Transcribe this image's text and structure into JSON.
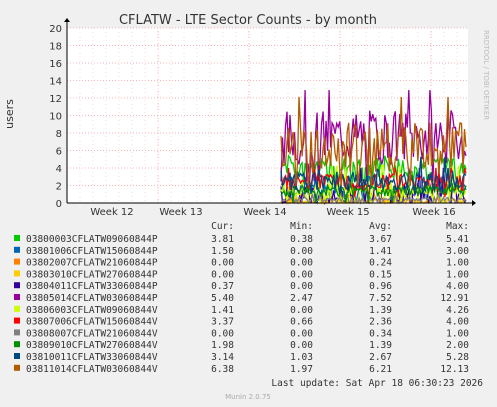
{
  "chart_data": {
    "type": "line",
    "title": "CFLATW - LTE Sector Counts - by month",
    "ylabel": "users",
    "ylim": [
      0,
      20
    ],
    "yticks": [
      0,
      2,
      4,
      6,
      8,
      10,
      12,
      14,
      16,
      18,
      20
    ],
    "xticks": [
      "Week 12",
      "Week 13",
      "Week 14",
      "Week 15",
      "Week 16"
    ],
    "grid": true,
    "side_text": "RRDTOOL / TOBI OETIKER",
    "legend_headers": [
      "Cur:",
      "Min:",
      "Avg:",
      "Max:"
    ],
    "series": [
      {
        "name": "03800003CFLATW09060844P",
        "color": "#00cc00",
        "cur": "3.81",
        "min": "0.38",
        "avg": "3.67",
        "max": "5.41"
      },
      {
        "name": "03801006CFLATW15060844P",
        "color": "#0066b3",
        "cur": "1.50",
        "min": "0.00",
        "avg": "1.41",
        "max": "3.00"
      },
      {
        "name": "03802007CFLATW21060844P",
        "color": "#ff8000",
        "cur": "0.00",
        "min": "0.00",
        "avg": "0.24",
        "max": "1.00"
      },
      {
        "name": "03803010CFLATW27060844P",
        "color": "#ffcc00",
        "cur": "0.00",
        "min": "0.00",
        "avg": "0.15",
        "max": "1.00"
      },
      {
        "name": "03804011CFLATW33060844P",
        "color": "#330099",
        "cur": "0.37",
        "min": "0.00",
        "avg": "0.96",
        "max": "4.00"
      },
      {
        "name": "03805014CFLATW03060844P",
        "color": "#990099",
        "cur": "5.40",
        "min": "2.47",
        "avg": "7.52",
        "max": "12.91"
      },
      {
        "name": "03806003CFLATW09060844V",
        "color": "#ccff00",
        "cur": "1.41",
        "min": "0.00",
        "avg": "1.39",
        "max": "4.26"
      },
      {
        "name": "03807006CFLATW15060844V",
        "color": "#ff0000",
        "cur": "3.37",
        "min": "0.66",
        "avg": "2.36",
        "max": "4.00"
      },
      {
        "name": "03808007CFLATW21060844V",
        "color": "#808080",
        "cur": "0.00",
        "min": "0.00",
        "avg": "0.34",
        "max": "1.00"
      },
      {
        "name": "03809010CFLATW27060844V",
        "color": "#008f00",
        "cur": "1.98",
        "min": "0.00",
        "avg": "1.39",
        "max": "2.00"
      },
      {
        "name": "03810011CFLATW33060844V",
        "color": "#00487d",
        "cur": "3.14",
        "min": "1.03",
        "avg": "2.67",
        "max": "5.28"
      },
      {
        "name": "03811014CFLATW03060844V",
        "color": "#b35a00",
        "cur": "6.38",
        "min": "1.97",
        "avg": "6.21",
        "max": "12.13"
      }
    ],
    "last_update": "Last update: Sat Apr 18 06:30:23 2026",
    "footer": "Munin 2.0.75"
  }
}
